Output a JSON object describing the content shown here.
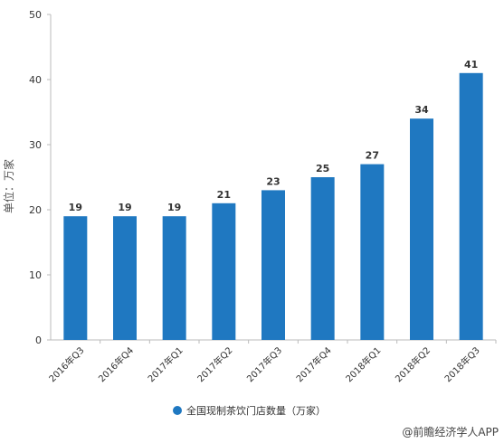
{
  "chart_data": {
    "type": "bar",
    "categories": [
      "2016年Q3",
      "2016年Q4",
      "2017年Q1",
      "2017年Q2",
      "2017年Q3",
      "2017年Q4",
      "2018年Q1",
      "2018年Q2",
      "2018年Q3"
    ],
    "series": [
      {
        "name": "全国现制茶饮门店数量（万家）",
        "values": [
          19,
          19,
          19,
          21,
          23,
          25,
          27,
          34,
          41
        ],
        "color": "#1f78c1"
      }
    ],
    "ylabel": "单位：万家",
    "xlabel": "",
    "ylim": [
      0,
      50
    ],
    "yticks": [
      0,
      10,
      20,
      30,
      40,
      50
    ],
    "grid": false,
    "legend": "bottom-center",
    "data_labels": true
  },
  "watermark": {
    "text": "@前瞻经济学人APP"
  }
}
